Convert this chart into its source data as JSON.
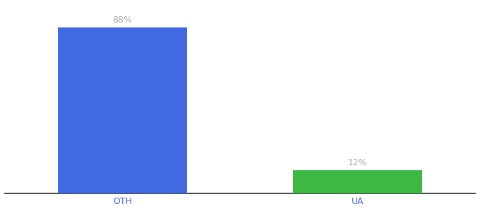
{
  "categories": [
    "OTH",
    "UA"
  ],
  "values": [
    88,
    12
  ],
  "bar_colors": [
    "#4169e1",
    "#3cb843"
  ],
  "value_labels": [
    "88%",
    "12%"
  ],
  "background_color": "#ffffff",
  "ylim": [
    0,
    100
  ],
  "bar_width": 0.55,
  "label_fontsize": 9,
  "tick_fontsize": 9,
  "label_color": "#aaaaaa",
  "tick_color": "#4169e1",
  "spine_color": "#222222"
}
